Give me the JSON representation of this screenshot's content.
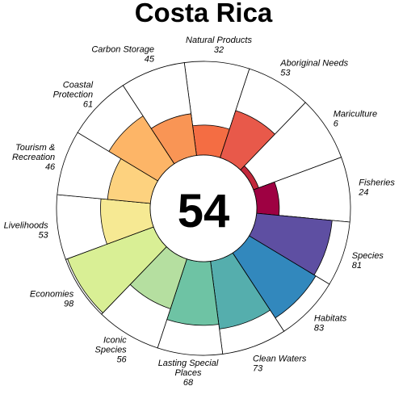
{
  "chart_data": {
    "type": "polar-bar",
    "title": "Costa Rica",
    "center_score": "54",
    "rlim": [
      0,
      100
    ],
    "goals": [
      {
        "label": "Natural Products",
        "value": 32,
        "color": "#F46D43"
      },
      {
        "label": "Aboriginal Needs",
        "value": 53,
        "color": "#E8594A"
      },
      {
        "label": "Mariculture",
        "value": 6,
        "color": "#C2283B"
      },
      {
        "label": "Fisheries",
        "value": 24,
        "color": "#9E0142"
      },
      {
        "label": "Species",
        "value": 81,
        "color": "#5E4FA2"
      },
      {
        "label": "Habitats",
        "value": 83,
        "color": "#3288BD"
      },
      {
        "label": "Clean Waters",
        "value": 73,
        "color": "#55AEAD"
      },
      {
        "label": "Lasting Special Places",
        "value": 68,
        "color": "#6EC3A4"
      },
      {
        "label": "Iconic Species",
        "value": 56,
        "color": "#B5DFA0"
      },
      {
        "label": "Economies",
        "value": 98,
        "color": "#D9EF95"
      },
      {
        "label": "Livelihoods",
        "value": 53,
        "color": "#F6E993"
      },
      {
        "label": "Tourism & Recreation",
        "value": 46,
        "color": "#FDD27F"
      },
      {
        "label": "Coastal Protection",
        "value": 61,
        "color": "#FDB567"
      },
      {
        "label": "Carbon Storage",
        "value": 45,
        "color": "#F99555"
      }
    ]
  }
}
